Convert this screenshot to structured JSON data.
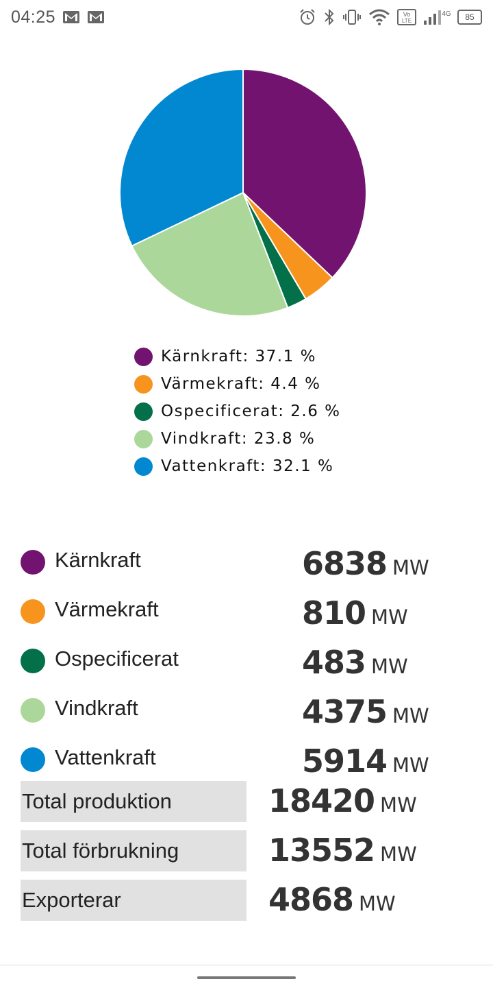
{
  "status_bar": {
    "time": "04:25",
    "battery": "85",
    "network": "4G",
    "volte": "Vo LTE",
    "icons": [
      "gmail-icon",
      "gmail-icon",
      "alarm-icon",
      "bluetooth-icon",
      "vibrate-icon",
      "wifi-icon",
      "volte-icon",
      "signal-icon",
      "battery-icon"
    ]
  },
  "colors": {
    "karnkraft": "#72146f",
    "varmekraft": "#f7941d",
    "ospecificerat": "#03704a",
    "vindkraft": "#acd79a",
    "vattenkraft": "#0288d1"
  },
  "chart_data": {
    "type": "pie",
    "categories": [
      "Kärnkraft",
      "Värmekraft",
      "Ospecificerat",
      "Vindkraft",
      "Vattenkraft"
    ],
    "values": [
      37.1,
      4.4,
      2.6,
      23.8,
      32.1
    ],
    "colors": [
      "#72146f",
      "#f7941d",
      "#03704a",
      "#acd79a",
      "#0288d1"
    ],
    "legend_labels": [
      "Kärnkraft: 37.1 %",
      "Värmekraft: 4.4 %",
      "Ospecificerat: 2.6 %",
      "Vindkraft: 23.8 %",
      "Vattenkraft: 32.1 %"
    ],
    "legend_placement": "bottom"
  },
  "sources": [
    {
      "name": "Kärnkraft",
      "value": "6838",
      "unit": "MW"
    },
    {
      "name": "Värmekraft",
      "value": "810",
      "unit": "MW"
    },
    {
      "name": "Ospecificerat",
      "value": "483",
      "unit": "MW"
    },
    {
      "name": "Vindkraft",
      "value": "4375",
      "unit": "MW"
    },
    {
      "name": "Vattenkraft",
      "value": "5914",
      "unit": "MW"
    }
  ],
  "totals": [
    {
      "label": "Total produktion",
      "value": "18420",
      "unit": "MW"
    },
    {
      "label": "Total förbrukning",
      "value": "13552",
      "unit": "MW"
    },
    {
      "label": "Exporterar",
      "value": "4868",
      "unit": "MW"
    }
  ]
}
